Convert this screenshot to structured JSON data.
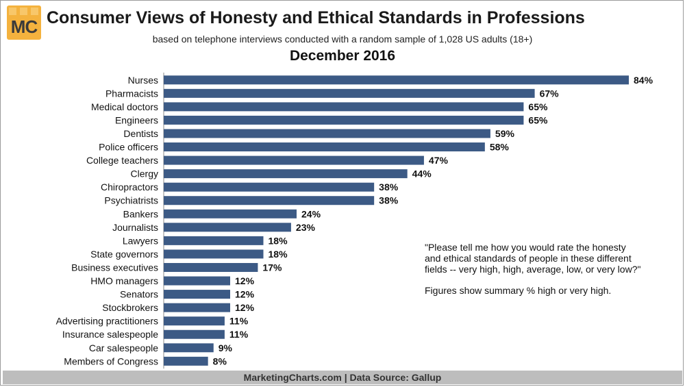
{
  "logo": {
    "text": "MC"
  },
  "header": {
    "title": "Consumer Views of Honesty and Ethical Standards in Professions",
    "subtitle": "based on telephone interviews conducted with a random sample of 1,028 US adults (18+)",
    "date": "December 2016"
  },
  "note": {
    "question": "\"Please tell me how you would rate the honesty and ethical standards of people in these different fields -- very high, high, average, low, or very low?\"",
    "figures": "Figures show summary % high or very high."
  },
  "footer": {
    "text": "MarketingCharts.com | Data Source: Gallup"
  },
  "colors": {
    "bar": "#3c5a85",
    "logo": "#f4b23e",
    "footer": "#bdbdbd"
  },
  "chart_data": {
    "type": "bar",
    "orientation": "horizontal",
    "title": "Consumer Views of Honesty and Ethical Standards in Professions",
    "subtitle": "December 2016",
    "categories": [
      "Nurses",
      "Pharmacists",
      "Medical doctors",
      "Engineers",
      "Dentists",
      "Police officers",
      "College teachers",
      "Clergy",
      "Chiropractors",
      "Psychiatrists",
      "Bankers",
      "Journalists",
      "Lawyers",
      "State governors",
      "Business executives",
      "HMO managers",
      "Senators",
      "Stockbrokers",
      "Advertising practitioners",
      "Insurance salespeople",
      "Car salespeople",
      "Members of Congress"
    ],
    "values": [
      84,
      67,
      65,
      65,
      59,
      58,
      47,
      44,
      38,
      38,
      24,
      23,
      18,
      18,
      17,
      12,
      12,
      12,
      11,
      11,
      9,
      8
    ],
    "value_labels": [
      "84%",
      "67%",
      "65%",
      "65%",
      "59%",
      "58%",
      "47%",
      "44%",
      "38%",
      "38%",
      "24%",
      "23%",
      "18%",
      "18%",
      "17%",
      "12%",
      "12%",
      "12%",
      "11%",
      "11%",
      "9%",
      "8%"
    ],
    "xlim": [
      0,
      84
    ],
    "grid": false,
    "legend": "none"
  }
}
